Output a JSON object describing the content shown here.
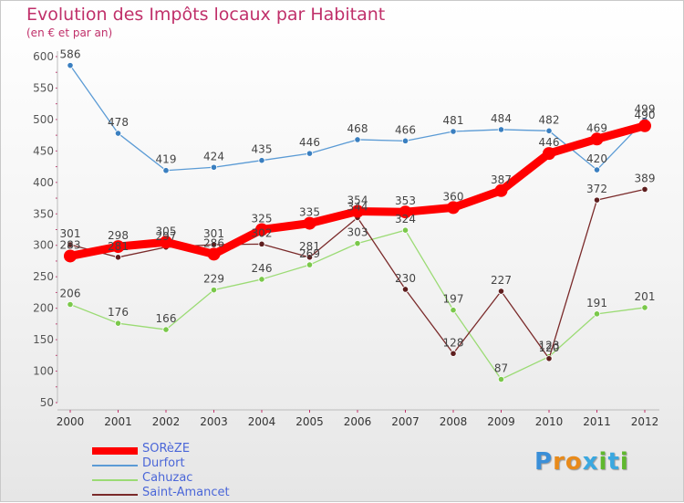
{
  "title": "Evolution des Impôts locaux par Habitant",
  "subtitle": "(en € et par an)",
  "logo": {
    "text": "Proxiti",
    "colors": [
      "#3a8fd8",
      "#e88a1a",
      "#e88a1a",
      "#3aa8e0",
      "#5fb82e",
      "#3aa8e0",
      "#5fb82e"
    ]
  },
  "chart_data": {
    "type": "line",
    "title": "Evolution des Impôts locaux par Habitant",
    "subtitle": "(en € et par an)",
    "xlabel": "",
    "ylabel": "",
    "ylim": [
      50,
      600
    ],
    "yticks": [
      50,
      100,
      150,
      200,
      250,
      300,
      350,
      400,
      450,
      500,
      550,
      600
    ],
    "categories": [
      "2000",
      "2001",
      "2002",
      "2003",
      "2004",
      "2005",
      "2006",
      "2007",
      "2008",
      "2009",
      "2010",
      "2011",
      "2012"
    ],
    "legend_position": "bottom-left",
    "series": [
      {
        "name": "Durfort",
        "color": "#5b9bd5",
        "point_color": "#3a7fc0",
        "values": [
          586,
          478,
          419,
          424,
          435,
          446,
          468,
          466,
          481,
          484,
          482,
          420,
          499
        ]
      },
      {
        "name": "Cahuzac",
        "color": "#9bdb74",
        "point_color": "#7ac84a",
        "values": [
          206,
          176,
          166,
          229,
          246,
          269,
          303,
          324,
          197,
          87,
          123,
          191,
          201
        ]
      },
      {
        "name": "Saint-Amancet",
        "color": "#7a2a2a",
        "point_color": "#5e1e1e",
        "values": [
          301,
          281,
          297,
          301,
          302,
          281,
          344,
          230,
          128,
          227,
          120,
          372,
          389
        ]
      },
      {
        "name": "SORèZE",
        "color": "#ff0000",
        "point_color": "#ff0000",
        "values": [
          283,
          298,
          305,
          286,
          325,
          335,
          354,
          353,
          360,
          387,
          446,
          469,
          490
        ]
      }
    ],
    "legend_order": [
      "SORèZE",
      "Durfort",
      "Cahuzac",
      "Saint-Amancet"
    ]
  }
}
